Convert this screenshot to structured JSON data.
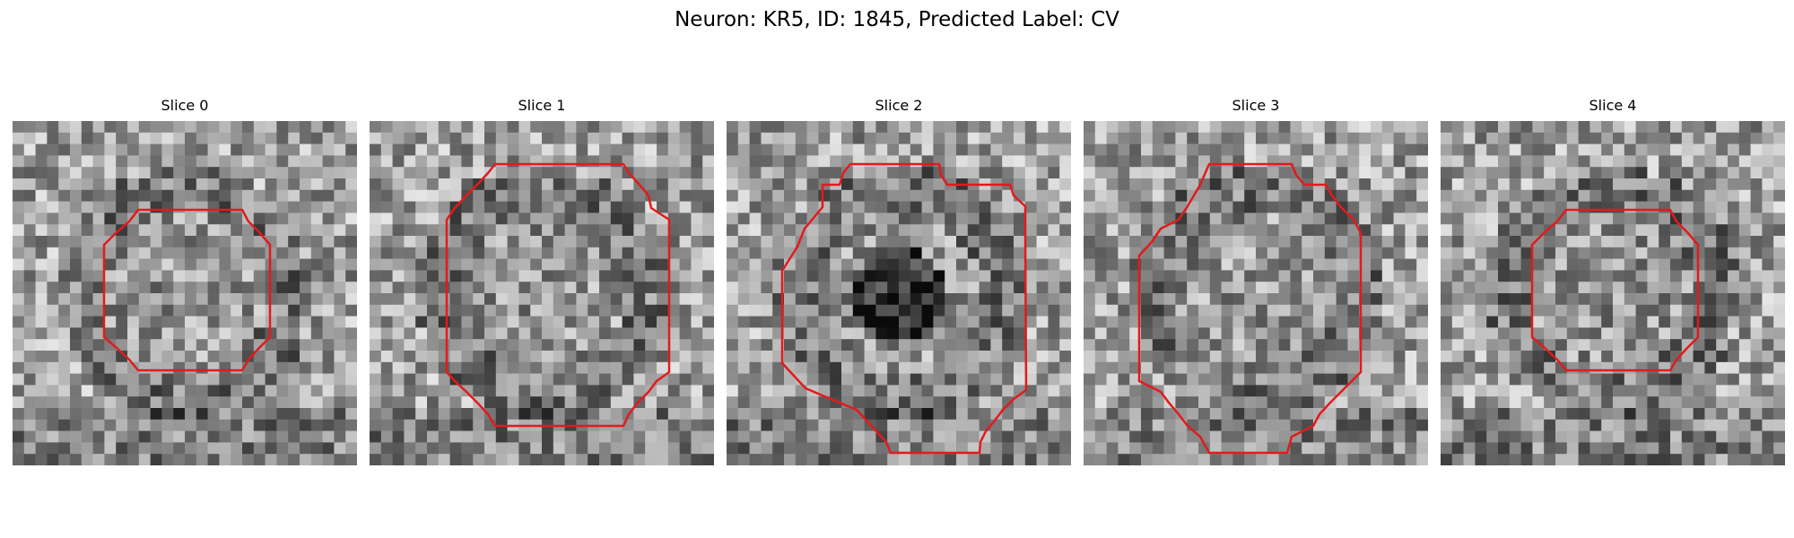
{
  "figure": {
    "title": "Neuron: KR5, ID: 1845, Predicted Label: CV"
  },
  "colors": {
    "roi_outline": "#e31a1c",
    "colormap": "gray"
  },
  "image": {
    "grid_cells": 30,
    "description_note": "noisy grayscale microscopy patches with red ROI outline"
  },
  "slices": [
    {
      "title": "Slice 0",
      "seed": 11,
      "dark_center": false,
      "roi_id": "small"
    },
    {
      "title": "Slice 1",
      "seed": 23,
      "dark_center": false,
      "roi_id": "large"
    },
    {
      "title": "Slice 2",
      "seed": 37,
      "dark_center": true,
      "roi_id": "tall"
    },
    {
      "title": "Slice 3",
      "seed": 51,
      "dark_center": false,
      "roi_id": "large_tall"
    },
    {
      "title": "Slice 4",
      "seed": 67,
      "dark_center": false,
      "roi_id": "small"
    }
  ]
}
